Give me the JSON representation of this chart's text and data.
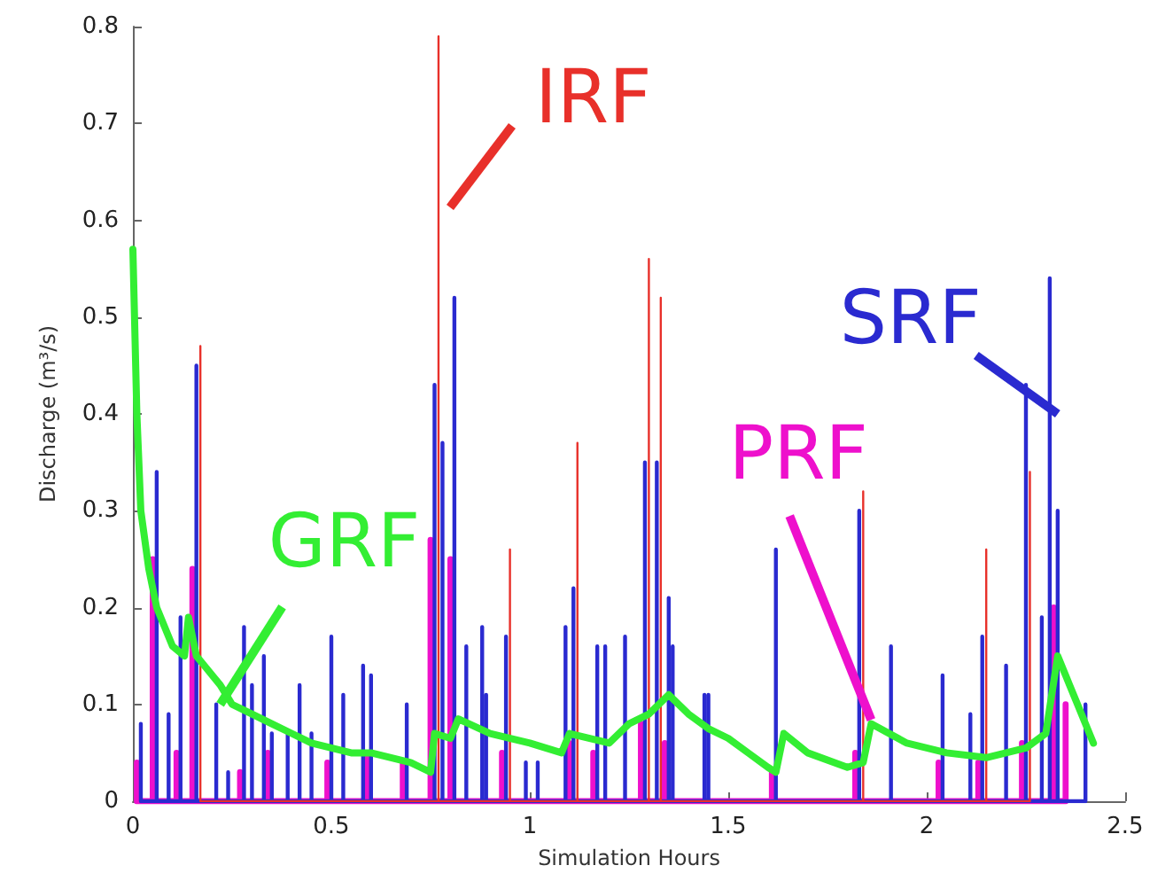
{
  "chart_data": {
    "type": "line",
    "xlabel": "Simulation Hours",
    "ylabel": "Discharge (m³/s)",
    "xlim": [
      0,
      2.5
    ],
    "ylim": [
      0,
      0.8
    ],
    "xticks": [
      0,
      0.5,
      1,
      1.5,
      2,
      2.5
    ],
    "yticks": [
      0,
      0.1,
      0.2,
      0.3,
      0.4,
      0.5,
      0.6,
      0.7,
      0.8
    ],
    "annotations": [
      "IRF",
      {
        "text": "SRF",
        "x": 2.33,
        "y": 0.4
      },
      {
        "text": "PRF",
        "x": 1.86,
        "y": 0.084
      },
      {
        "text": "GRF",
        "x": 0.22,
        "y": 0.1
      }
    ],
    "series": [
      {
        "color": "#e8302a",
        "x": [
          0.17,
          0.17,
          0.17,
          0.77,
          0.77,
          0.77,
          0.95,
          0.95,
          0.95,
          1.12,
          1.12,
          1.12,
          1.3,
          1.3,
          1.3,
          1.33,
          1.33,
          1.33,
          1.84,
          1.84,
          1.84,
          2.15,
          2.15,
          2.15,
          2.26,
          2.26,
          2.26
        ],
        "values": [
          0,
          0.47,
          0,
          0,
          0.79,
          0,
          0,
          0.26,
          0,
          0,
          0.37,
          0,
          0,
          0.56,
          0,
          0,
          0.52,
          0,
          0,
          0.32,
          0,
          0,
          0.26,
          0,
          0,
          0.34,
          0
        ]
      },
      {
        "color": "#2a2ad0",
        "x": [
          0.02,
          0.02,
          0.02,
          0.06,
          0.06,
          0.06,
          0.09,
          0.09,
          0.09,
          0.12,
          0.12,
          0.12,
          0.16,
          0.16,
          0.16,
          0.21,
          0.21,
          0.21,
          0.24,
          0.24,
          0.24,
          0.28,
          0.28,
          0.28,
          0.3,
          0.3,
          0.3,
          0.33,
          0.33,
          0.33,
          0.35,
          0.35,
          0.35,
          0.39,
          0.39,
          0.39,
          0.42,
          0.42,
          0.42,
          0.45,
          0.45,
          0.45,
          0.5,
          0.5,
          0.5,
          0.53,
          0.53,
          0.53,
          0.58,
          0.58,
          0.58,
          0.6,
          0.6,
          0.6,
          0.69,
          0.69,
          0.69,
          0.76,
          0.76,
          0.76,
          0.78,
          0.78,
          0.78,
          0.81,
          0.81,
          0.81,
          0.84,
          0.84,
          0.84,
          0.88,
          0.88,
          0.88,
          0.89,
          0.89,
          0.89,
          0.94,
          0.94,
          0.94,
          0.99,
          0.99,
          0.99,
          1.02,
          1.02,
          1.02,
          1.09,
          1.09,
          1.09,
          1.11,
          1.11,
          1.11,
          1.17,
          1.17,
          1.17,
          1.19,
          1.19,
          1.19,
          1.24,
          1.24,
          1.24,
          1.29,
          1.29,
          1.29,
          1.32,
          1.32,
          1.32,
          1.35,
          1.35,
          1.35,
          1.36,
          1.36,
          1.36,
          1.44,
          1.44,
          1.44,
          1.45,
          1.45,
          1.45,
          1.62,
          1.62,
          1.62,
          1.83,
          1.83,
          1.83,
          1.91,
          1.91,
          1.91,
          2.04,
          2.04,
          2.04,
          2.11,
          2.11,
          2.11,
          2.14,
          2.14,
          2.14,
          2.2,
          2.2,
          2.2,
          2.25,
          2.25,
          2.25,
          2.29,
          2.29,
          2.29,
          2.31,
          2.31,
          2.31,
          2.33,
          2.33,
          2.33,
          2.4,
          2.4,
          2.4
        ],
        "values": [
          0,
          0.08,
          0,
          0,
          0.34,
          0,
          0,
          0.09,
          0,
          0,
          0.19,
          0,
          0,
          0.45,
          0,
          0,
          0.1,
          0,
          0,
          0.03,
          0,
          0,
          0.18,
          0,
          0,
          0.12,
          0,
          0,
          0.15,
          0,
          0,
          0.07,
          0,
          0,
          0.07,
          0,
          0,
          0.12,
          0,
          0,
          0.07,
          0,
          0,
          0.17,
          0,
          0,
          0.11,
          0,
          0,
          0.14,
          0,
          0,
          0.13,
          0,
          0,
          0.1,
          0,
          0,
          0.43,
          0,
          0,
          0.37,
          0,
          0,
          0.52,
          0,
          0,
          0.16,
          0,
          0,
          0.18,
          0,
          0,
          0.11,
          0,
          0,
          0.17,
          0,
          0,
          0.04,
          0,
          0,
          0.04,
          0,
          0,
          0.18,
          0,
          0,
          0.22,
          0,
          0,
          0.16,
          0,
          0,
          0.16,
          0,
          0,
          0.17,
          0,
          0,
          0.35,
          0,
          0,
          0.35,
          0,
          0,
          0.21,
          0,
          0,
          0.16,
          0,
          0,
          0.11,
          0,
          0,
          0.11,
          0,
          0,
          0.26,
          0,
          0,
          0.3,
          0,
          0,
          0.16,
          0,
          0,
          0.13,
          0,
          0,
          0.09,
          0,
          0,
          0.17,
          0,
          0,
          0.14,
          0,
          0,
          0.43,
          0,
          0,
          0.19,
          0,
          0,
          0.54,
          0,
          0,
          0.3,
          0,
          0,
          0.1,
          0
        ]
      },
      {
        "color": "#ee10cc",
        "x": [
          0.01,
          0.01,
          0.01,
          0.05,
          0.05,
          0.05,
          0.11,
          0.11,
          0.11,
          0.15,
          0.15,
          0.15,
          0.27,
          0.27,
          0.27,
          0.34,
          0.34,
          0.34,
          0.49,
          0.49,
          0.49,
          0.59,
          0.59,
          0.59,
          0.68,
          0.68,
          0.68,
          0.75,
          0.75,
          0.75,
          0.8,
          0.8,
          0.8,
          0.93,
          0.93,
          0.93,
          1.1,
          1.1,
          1.1,
          1.16,
          1.16,
          1.16,
          1.28,
          1.28,
          1.28,
          1.34,
          1.34,
          1.34,
          1.61,
          1.61,
          1.61,
          1.82,
          1.82,
          1.82,
          2.03,
          2.03,
          2.03,
          2.13,
          2.13,
          2.13,
          2.24,
          2.24,
          2.24,
          2.32,
          2.32,
          2.32,
          2.35,
          2.35,
          2.35
        ],
        "values": [
          0,
          0.04,
          0,
          0,
          0.25,
          0,
          0,
          0.05,
          0,
          0,
          0.24,
          0,
          0,
          0.03,
          0,
          0,
          0.05,
          0,
          0,
          0.04,
          0,
          0,
          0.05,
          0,
          0,
          0.04,
          0,
          0,
          0.27,
          0,
          0,
          0.25,
          0,
          0,
          0.05,
          0,
          0,
          0.06,
          0,
          0,
          0.05,
          0,
          0,
          0.08,
          0,
          0,
          0.06,
          0,
          0,
          0.03,
          0,
          0,
          0.05,
          0,
          0,
          0.04,
          0,
          0,
          0.04,
          0,
          0,
          0.06,
          0,
          0,
          0.2,
          0,
          0,
          0.1,
          0
        ]
      },
      {
        "color": "#33ee33",
        "x": [
          0,
          0.01,
          0.02,
          0.04,
          0.06,
          0.1,
          0.13,
          0.14,
          0.16,
          0.18,
          0.22,
          0.25,
          0.3,
          0.35,
          0.4,
          0.45,
          0.5,
          0.55,
          0.6,
          0.65,
          0.7,
          0.75,
          0.76,
          0.8,
          0.82,
          0.9,
          1.0,
          1.08,
          1.1,
          1.2,
          1.25,
          1.3,
          1.35,
          1.4,
          1.45,
          1.5,
          1.55,
          1.6,
          1.62,
          1.64,
          1.7,
          1.8,
          1.84,
          1.86,
          1.95,
          2.05,
          2.15,
          2.25,
          2.3,
          2.33,
          2.36,
          2.38,
          2.42
        ],
        "values": [
          0.57,
          0.4,
          0.3,
          0.24,
          0.2,
          0.16,
          0.15,
          0.19,
          0.15,
          0.14,
          0.12,
          0.1,
          0.09,
          0.08,
          0.07,
          0.06,
          0.055,
          0.05,
          0.05,
          0.045,
          0.04,
          0.03,
          0.07,
          0.065,
          0.085,
          0.07,
          0.06,
          0.05,
          0.07,
          0.06,
          0.08,
          0.09,
          0.11,
          0.09,
          0.075,
          0.065,
          0.05,
          0.035,
          0.03,
          0.07,
          0.05,
          0.035,
          0.04,
          0.08,
          0.06,
          0.05,
          0.045,
          0.055,
          0.07,
          0.15,
          0.12,
          0.1,
          0.06
        ]
      }
    ]
  }
}
